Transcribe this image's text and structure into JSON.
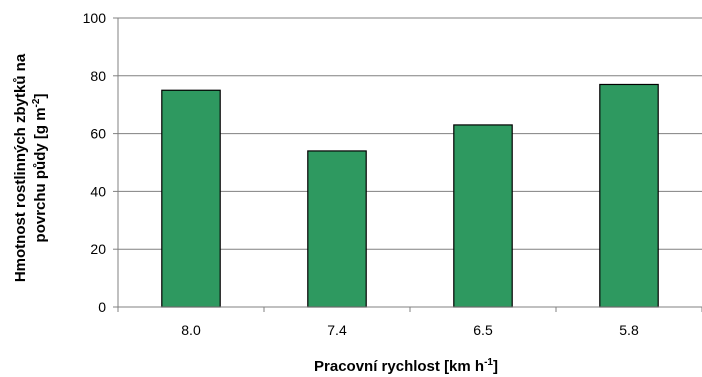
{
  "chart_data": {
    "type": "bar",
    "categories": [
      "8.0",
      "7.4",
      "6.5",
      "5.8"
    ],
    "values": [
      75,
      54,
      63,
      77
    ],
    "ylim": [
      0,
      100
    ],
    "yticks": [
      0,
      20,
      40,
      60,
      80,
      100
    ],
    "grid": true,
    "legend": "none",
    "bar_color": "#2e9960",
    "bar_edge_color": "#000000",
    "grid_color": "#808080",
    "xlabel": {
      "main": "Pracovní rychlost [km h",
      "sup": "-1",
      "end": "]"
    },
    "ylabel": {
      "line1": "Hmotnost rostlinných zbytků na",
      "line2_main": "povrchu půdy [g m",
      "line2_sup": "-2",
      "line2_end": "]"
    }
  }
}
